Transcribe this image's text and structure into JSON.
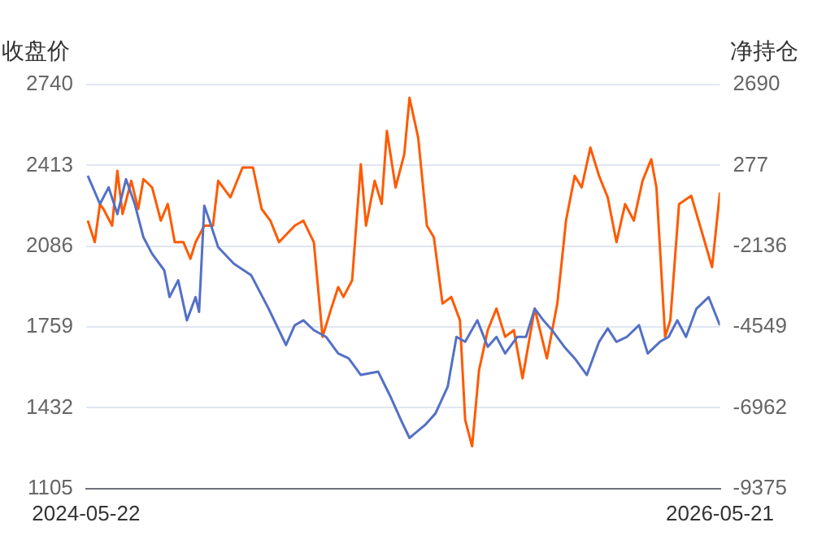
{
  "chart_data": {
    "type": "line",
    "ylabel": "收盘价",
    "y2label": "净持仓",
    "xlim": [
      "2024-05-22",
      "2026-05-21"
    ],
    "xticks": [
      "2024-05-22",
      "2026-05-21"
    ],
    "ylim": [
      1105,
      2740
    ],
    "yticks": [
      1105,
      1432,
      1759,
      2086,
      2413,
      2740
    ],
    "y2lim": [
      -9375,
      2690
    ],
    "y2ticks": [
      -9375,
      -6962,
      -4549,
      -2136,
      277,
      2690
    ],
    "grid": "y",
    "legend": false,
    "marker": "none",
    "line_style": "solid",
    "series": [
      {
        "color": "#5470c6",
        "axis": "y",
        "x": [
          "2024-05-24",
          "2024-06-07",
          "2024-06-17",
          "2024-06-27",
          "2024-07-07",
          "2024-07-17",
          "2024-07-27",
          "2024-08-06",
          "2024-08-20",
          "2024-08-26",
          "2024-09-05",
          "2024-09-15",
          "2024-09-25",
          "2024-09-29",
          "2024-10-05",
          "2024-10-11",
          "2024-10-21",
          "2024-11-08",
          "2024-11-28",
          "2024-12-18",
          "2025-01-07",
          "2025-01-17",
          "2025-01-27",
          "2025-02-08",
          "2025-02-22",
          "2025-03-08",
          "2025-03-20",
          "2025-04-03",
          "2025-04-23",
          "2025-05-07",
          "2025-05-19",
          "2025-05-29",
          "2025-06-16",
          "2025-06-28",
          "2025-07-12",
          "2025-07-22",
          "2025-08-01",
          "2025-08-15",
          "2025-08-27",
          "2025-09-06",
          "2025-09-16",
          "2025-09-30",
          "2025-10-10",
          "2025-10-20",
          "2025-10-30",
          "2025-11-09",
          "2025-11-23",
          "2025-12-05",
          "2025-12-19",
          "2026-01-02",
          "2026-01-12",
          "2026-01-22",
          "2026-02-03",
          "2026-02-17",
          "2026-02-27",
          "2026-03-13",
          "2026-03-23",
          "2026-04-02",
          "2026-04-12",
          "2026-04-24",
          "2026-05-08",
          "2026-05-21"
        ],
        "values": [
          2371,
          2257,
          2324,
          2216,
          2357,
          2257,
          2122,
          2055,
          1988,
          1880,
          1948,
          1786,
          1880,
          1820,
          2250,
          2189,
          2082,
          2015,
          1968,
          1833,
          1686,
          1766,
          1786,
          1746,
          1719,
          1652,
          1632,
          1565,
          1578,
          1478,
          1384,
          1310,
          1363,
          1410,
          1518,
          1719,
          1699,
          1786,
          1679,
          1719,
          1652,
          1719,
          1719,
          1833,
          1786,
          1746,
          1679,
          1632,
          1565,
          1699,
          1753,
          1699,
          1719,
          1766,
          1652,
          1699,
          1719,
          1786,
          1719,
          1833,
          1880,
          1766
        ]
      },
      {
        "color": "#ff5a00",
        "axis": "y2",
        "x": [
          "2024-05-24",
          "2024-06-01",
          "2024-06-07",
          "2024-06-11",
          "2024-06-21",
          "2024-06-27",
          "2024-07-03",
          "2024-07-13",
          "2024-07-21",
          "2024-07-27",
          "2024-08-06",
          "2024-08-16",
          "2024-08-24",
          "2024-09-01",
          "2024-09-11",
          "2024-09-19",
          "2024-09-25",
          "2024-10-05",
          "2024-10-15",
          "2024-10-21",
          "2024-11-04",
          "2024-11-18",
          "2024-11-30",
          "2024-12-10",
          "2024-12-20",
          "2024-12-30",
          "2025-01-17",
          "2025-01-27",
          "2025-02-08",
          "2025-02-18",
          "2025-02-28",
          "2025-03-08",
          "2025-03-14",
          "2025-03-24",
          "2025-04-03",
          "2025-04-09",
          "2025-04-19",
          "2025-04-27",
          "2025-05-03",
          "2025-05-13",
          "2025-05-23",
          "2025-05-29",
          "2025-06-08",
          "2025-06-18",
          "2025-06-26",
          "2025-07-06",
          "2025-07-16",
          "2025-07-26",
          "2025-08-01",
          "2025-08-09",
          "2025-08-17",
          "2025-08-27",
          "2025-09-06",
          "2025-09-16",
          "2025-09-26",
          "2025-10-06",
          "2025-10-20",
          "2025-11-03",
          "2025-11-15",
          "2025-11-25",
          "2025-12-05",
          "2025-12-13",
          "2025-12-23",
          "2026-01-02",
          "2026-01-12",
          "2026-01-22",
          "2026-02-01",
          "2026-02-11",
          "2026-02-21",
          "2026-03-03",
          "2026-03-09",
          "2026-03-19",
          "2026-03-25",
          "2026-04-04",
          "2026-04-18",
          "2026-05-02",
          "2026-05-12",
          "2026-05-17",
          "2026-05-21"
        ],
        "values": [
          -1373,
          -2017,
          -878,
          -1026,
          -1522,
          113,
          -1175,
          -184,
          -1026,
          -134,
          -382,
          -1373,
          -878,
          -2017,
          -2017,
          -2513,
          -2017,
          -1522,
          -1522,
          -184,
          -679,
          212,
          212,
          -1026,
          -1373,
          -2017,
          -1522,
          -1373,
          -2017,
          -4842,
          -3999,
          -3355,
          -3652,
          -3157,
          312,
          -1522,
          -184,
          -878,
          1303,
          -382,
          609,
          2294,
          1104,
          -1522,
          -1869,
          -3851,
          -3652,
          -4346,
          -7319,
          -8112,
          -5833,
          -4643,
          -3999,
          -4842,
          -4643,
          -6080,
          -3999,
          -5486,
          -3851,
          -1373,
          -35,
          -382,
          807,
          -35,
          -679,
          -2017,
          -878,
          -1373,
          -184,
          460,
          -382,
          -4842,
          -4346,
          -878,
          -630,
          -1869,
          -2761,
          -1522,
          -531
        ]
      }
    ]
  }
}
